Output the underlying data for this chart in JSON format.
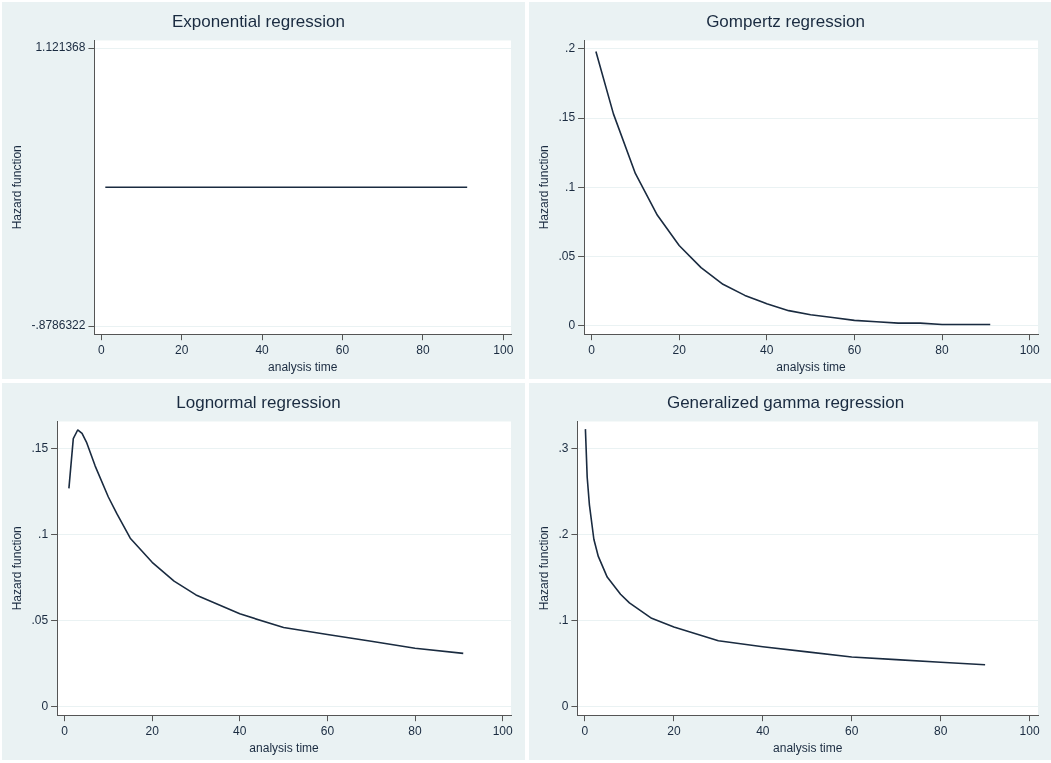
{
  "chart_data": [
    {
      "type": "line",
      "title": "Exponential regression",
      "xlabel": "analysis time",
      "ylabel": "Hazard function",
      "grid": "y",
      "xlim": [
        -1.7,
        101.9
      ],
      "xticks": [
        0,
        20,
        40,
        60,
        80,
        100
      ],
      "ylim": [
        -0.937,
        1.177
      ],
      "yticks": [
        {
          "value": -0.8786322,
          "label": "-.8786322"
        },
        {
          "value": 1.121368,
          "label": "1.121368"
        }
      ],
      "series": [
        {
          "color": "#1a2b40",
          "x": [
            1,
            91
          ],
          "values": [
            0.12,
            0.12
          ]
        }
      ]
    },
    {
      "type": "line",
      "title": "Gompertz regression",
      "xlabel": "analysis time",
      "ylabel": "Hazard function",
      "grid": "y",
      "xlim": [
        -1.7,
        101.9
      ],
      "xticks": [
        0,
        20,
        40,
        60,
        80,
        100
      ],
      "ylim": [
        -0.006,
        0.206
      ],
      "yticks": [
        {
          "value": 0,
          "label": "0"
        },
        {
          "value": 0.05,
          "label": ".05"
        },
        {
          "value": 0.1,
          "label": ".1"
        },
        {
          "value": 0.15,
          "label": ".15"
        },
        {
          "value": 0.2,
          "label": ".2"
        }
      ],
      "series": [
        {
          "color": "#1a2b40",
          "x": [
            1,
            5,
            10,
            15,
            20,
            25,
            30,
            35,
            40,
            45,
            50,
            55,
            60,
            65,
            70,
            75,
            80,
            85,
            91
          ],
          "values": [
            0.198,
            0.153,
            0.11,
            0.08,
            0.058,
            0.042,
            0.03,
            0.022,
            0.016,
            0.011,
            0.008,
            0.006,
            0.004,
            0.003,
            0.002,
            0.002,
            0.001,
            0.001,
            0.001
          ]
        }
      ]
    },
    {
      "type": "line",
      "title": "Lognormal regression",
      "xlabel": "analysis time",
      "ylabel": "Hazard function",
      "grid": "y",
      "xlim": [
        -1.7,
        101.9
      ],
      "xticks": [
        0,
        20,
        40,
        60,
        80,
        100
      ],
      "ylim": [
        -0.005,
        0.166
      ],
      "yticks": [
        {
          "value": 0,
          "label": "0"
        },
        {
          "value": 0.05,
          "label": ".05"
        },
        {
          "value": 0.1,
          "label": ".1"
        },
        {
          "value": 0.15,
          "label": ".15"
        }
      ],
      "series": [
        {
          "color": "#1a2b40",
          "x": [
            1,
            2,
            3,
            4,
            5,
            7,
            10,
            12,
            15,
            20,
            25,
            30,
            40,
            50,
            60,
            70,
            80,
            91
          ],
          "values": [
            0.127,
            0.156,
            0.161,
            0.159,
            0.154,
            0.14,
            0.122,
            0.112,
            0.098,
            0.084,
            0.073,
            0.065,
            0.054,
            0.046,
            0.042,
            0.038,
            0.034,
            0.031
          ]
        }
      ]
    },
    {
      "type": "line",
      "title": "Generalized gamma regression",
      "xlabel": "analysis time",
      "ylabel": "Hazard function",
      "grid": "y",
      "xlim": [
        -1.7,
        101.9
      ],
      "xticks": [
        0,
        20,
        40,
        60,
        80,
        100
      ],
      "ylim": [
        -0.0096,
        0.332
      ],
      "yticks": [
        {
          "value": 0,
          "label": "0"
        },
        {
          "value": 0.1,
          "label": ".1"
        },
        {
          "value": 0.2,
          "label": ".2"
        },
        {
          "value": 0.3,
          "label": ".3"
        }
      ],
      "series": [
        {
          "color": "#1a2b40",
          "x": [
            0.1,
            0.5,
            1,
            2,
            3,
            5,
            8,
            10,
            15,
            20,
            30,
            40,
            50,
            60,
            70,
            80,
            90
          ],
          "values": [
            0.323,
            0.267,
            0.235,
            0.195,
            0.175,
            0.151,
            0.131,
            0.121,
            0.103,
            0.093,
            0.077,
            0.07,
            0.064,
            0.058,
            0.055,
            0.052,
            0.049
          ]
        }
      ]
    }
  ]
}
